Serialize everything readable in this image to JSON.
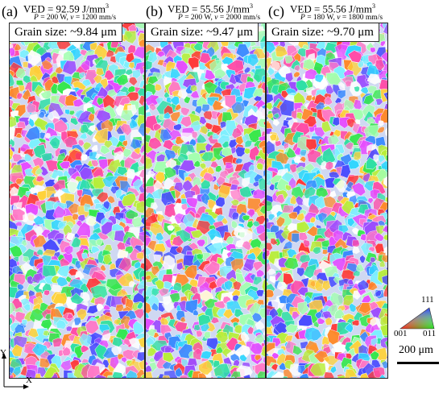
{
  "panels": [
    {
      "letter": "(a)",
      "ved_prefix": "VED = 92.59 J/mm",
      "ved_exp": "3",
      "params": {
        "p": "P",
        "p_val": " = 200 W, ",
        "v": "v",
        "v_val": " = 1200 mm/s"
      },
      "grain_size": "Grain size: ~9.84 μm"
    },
    {
      "letter": "(b)",
      "ved_prefix": "VED = 55.56 J/mm",
      "ved_exp": "3",
      "params": {
        "p": "P",
        "p_val": " = 200 W, ",
        "v": "v",
        "v_val": " = 2000 mm/s"
      },
      "grain_size": "Grain size: ~9.47 μm"
    },
    {
      "letter": "(c)",
      "ved_prefix": "VED = 55.56 J/mm",
      "ved_exp": "3",
      "params": {
        "p": "P",
        "p_val": " = 180 W, ",
        "v": "v",
        "v_val": " = 1800 mm/s"
      },
      "grain_size": "Grain size: ~9.70 μm"
    }
  ],
  "axes": {
    "y": "Y",
    "x": "X"
  },
  "ipf_key": {
    "top": "111",
    "left": "001",
    "right": "011"
  },
  "scale_bar": {
    "label": "200 μm"
  },
  "colors": {
    "palette": [
      "#ff3b3b",
      "#ff8a2b",
      "#ffd23a",
      "#b8ef3a",
      "#35e84d",
      "#2fe0a6",
      "#33d6ff",
      "#3a8bff",
      "#4a4dff",
      "#9b4dff",
      "#e64dff",
      "#ff4da8",
      "#ff7ac8",
      "#7ef0ff",
      "#a4ffb0",
      "#ffffff"
    ]
  }
}
